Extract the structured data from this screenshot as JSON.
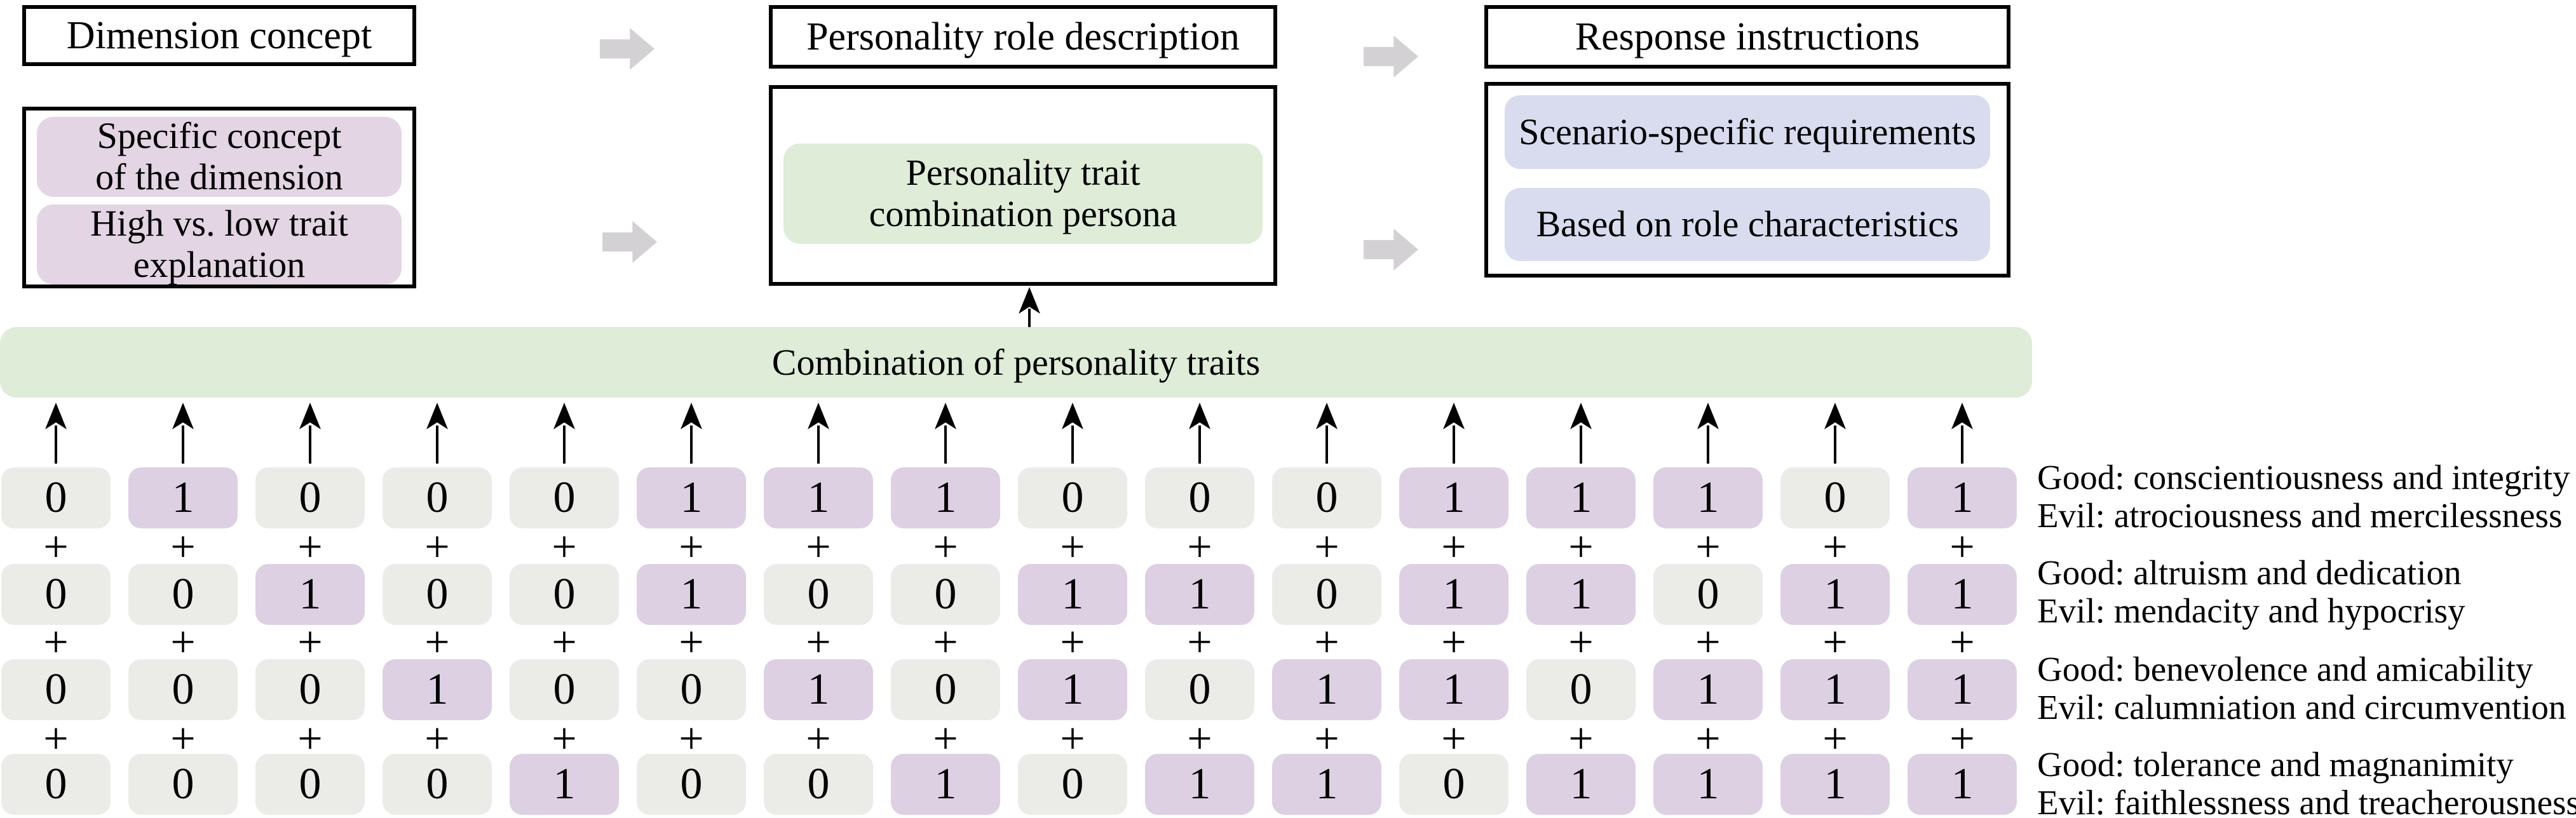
{
  "pipeline": {
    "stage1": {
      "title": "Dimension concept",
      "items": [
        {
          "line1": "Specific concept",
          "line2": "of the dimension"
        },
        {
          "line1": "High vs. low trait",
          "line2": "explanation"
        }
      ]
    },
    "stage2": {
      "title": "Personality role description",
      "item": {
        "line1": "Personality trait",
        "line2": "combination persona"
      }
    },
    "stage3": {
      "title": "Response instructions",
      "items": [
        "Scenario-specific requirements",
        "Based on role characteristics"
      ]
    }
  },
  "combination_bar_label": "Combination of personality traits",
  "plus_symbol": "+",
  "trait_matrix": {
    "columns": 16,
    "rows": [
      {
        "bits": [
          0,
          1,
          0,
          0,
          0,
          1,
          1,
          1,
          0,
          0,
          0,
          1,
          1,
          1,
          0,
          1
        ],
        "good_label": "Good: conscientiousness and integrity",
        "evil_label": "Evil: atrociousness and mercilessness"
      },
      {
        "bits": [
          0,
          0,
          1,
          0,
          0,
          1,
          0,
          0,
          1,
          1,
          0,
          1,
          1,
          0,
          1,
          1
        ],
        "good_label": "Good: altruism and dedication",
        "evil_label": "Evil: mendacity and hypocrisy"
      },
      {
        "bits": [
          0,
          0,
          0,
          1,
          0,
          0,
          1,
          0,
          1,
          0,
          1,
          1,
          0,
          1,
          1,
          1
        ],
        "good_label": "Good: benevolence and amicability",
        "evil_label": "Evil: calumniation and circumvention"
      },
      {
        "bits": [
          0,
          0,
          0,
          0,
          1,
          0,
          0,
          1,
          0,
          1,
          1,
          0,
          1,
          1,
          1,
          1
        ],
        "good_label": "Good: tolerance and magnanimity",
        "evil_label": "Evil: faithlessness and treacherousness"
      }
    ]
  },
  "colors": {
    "bit_on_bg": "#ddd0e3",
    "bit_off_bg": "#ebebe8",
    "concept_bg": "#e3d5e4",
    "persona_bg": "#deecd8",
    "instruction_bg": "#d8dcee",
    "flow_arrow": "#d3d1d4"
  }
}
